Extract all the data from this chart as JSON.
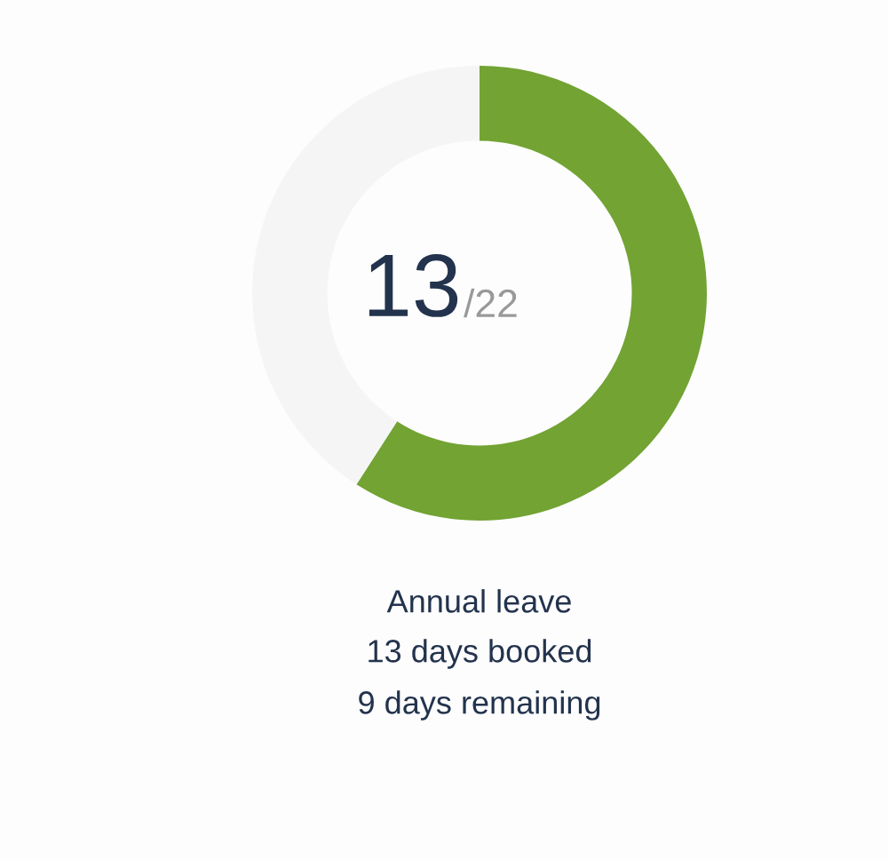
{
  "chart_data": {
    "type": "donut",
    "categories": [
      null,
      null
    ],
    "values": [
      59.1,
      40.9
    ],
    "colors": [
      "#72a333",
      "#f5f5f5"
    ],
    "title": "Annual leave",
    "annotations": [
      "13",
      "/22",
      "13 days booked",
      "9 days remaining"
    ]
  }
}
